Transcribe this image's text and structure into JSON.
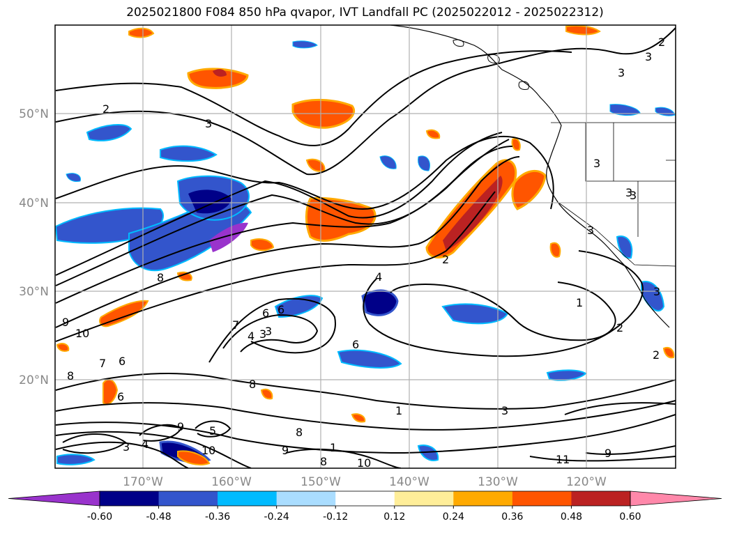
{
  "title": "2025021800 F084 850 hPa qvapor, IVT Landfall PC (2025022012 - 2025022312)",
  "map": {
    "lat_labels": [
      "50°N",
      "40°N",
      "30°N",
      "20°N"
    ],
    "lon_labels": [
      "170°W",
      "160°W",
      "150°W",
      "140°W",
      "130°W",
      "120°W"
    ],
    "gridlines": true,
    "coastlines": true,
    "state_borders": true,
    "contour_color": "#000000"
  },
  "colorbar": {
    "ticks": [
      "-0.60",
      "-0.48",
      "-0.36",
      "-0.24",
      "-0.12",
      "0.12",
      "0.24",
      "0.36",
      "0.48",
      "0.60"
    ],
    "colors": [
      "#9933cc",
      "#000088",
      "#3355cc",
      "#00bbff",
      "#aaddff",
      "#ffffff",
      "#ffee99",
      "#ffaa00",
      "#ff5500",
      "#bb2222",
      "#ff88aa"
    ],
    "extend": "both"
  },
  "contour_labels": [
    "2",
    "3",
    "3",
    "2",
    "3",
    "3",
    "3",
    "3",
    "3",
    "3",
    "2",
    "8",
    "4",
    "6",
    "6",
    "4",
    "3",
    "7",
    "9",
    "10",
    "7",
    "6",
    "8",
    "6",
    "8",
    "1",
    "8",
    "9",
    "10",
    "9",
    "3",
    "4",
    "1",
    "3",
    "8",
    "10",
    "11",
    "9",
    "2",
    "2",
    "1",
    "6",
    "5",
    "3"
  ]
}
